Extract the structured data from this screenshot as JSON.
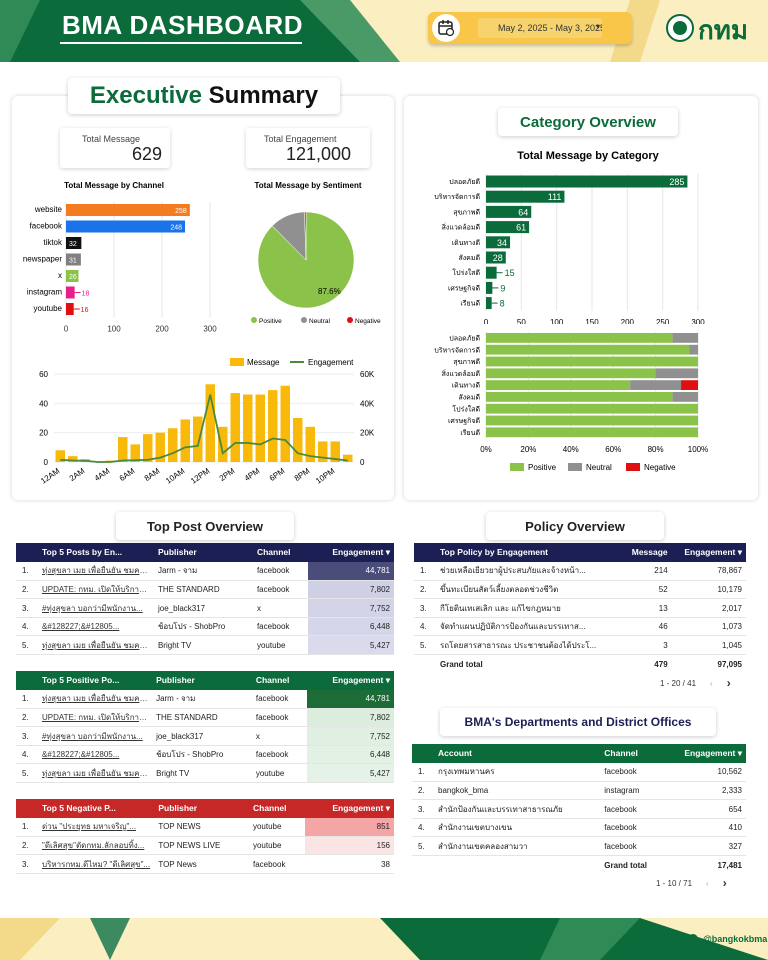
{
  "header": {
    "title": "BMA DASHBOARD",
    "date_range": "May 2, 2025 - May 3, 2025",
    "logo_text": "กทม"
  },
  "summary": {
    "title_a": "Executive",
    "title_b": "Summary",
    "total_message_label": "Total Message",
    "total_message": "629",
    "total_engagement_label": "Total Engagement",
    "total_engagement": "121,000"
  },
  "category_section_title": "Category Overview",
  "colors": {
    "green": "#0b6b3a",
    "orange": "#f47b20",
    "blue": "#1a73e8",
    "light_green": "#8bc34a",
    "grey": "#909090",
    "red": "#e01010",
    "navy": "#1b1f54",
    "darkred": "#c62828",
    "gold": "#f9b90b",
    "line_green": "#4a8a3a"
  },
  "chart_data": [
    {
      "type": "bar",
      "title": "Total Message by Channel",
      "categories": [
        "website",
        "facebook",
        "tiktok",
        "newspaper",
        "x",
        "instagram",
        "youtube"
      ],
      "values": [
        258,
        248,
        32,
        31,
        26,
        18,
        16
      ],
      "colors": [
        "#f47b20",
        "#1a73e8",
        "#111111",
        "#808080",
        "#8bc34a",
        "#e91e8c",
        "#e01010"
      ],
      "xlim": [
        0,
        300
      ],
      "xticks": [
        0,
        100,
        200,
        300
      ]
    },
    {
      "type": "pie",
      "title": "Total Message by Sentiment",
      "labels": [
        "Positive",
        "Neutral",
        "Negative"
      ],
      "values": [
        87.6,
        11.9,
        0.5
      ],
      "colors": [
        "#8bc34a",
        "#909090",
        "#e01010"
      ],
      "center_label": "87.6%"
    },
    {
      "type": "bar",
      "title": "Total Message by Category",
      "categories": [
        "ปลอดภัยดี",
        "บริหารจัดการดี",
        "สุขภาพดี",
        "สิ่งแวดล้อมดี",
        "เดินทางดี",
        "สังคมดี",
        "โปร่งใสดี",
        "เศรษฐกิจดี",
        "เรียนดี"
      ],
      "values": [
        285,
        111,
        64,
        61,
        34,
        28,
        15,
        9,
        8
      ],
      "xlim": [
        0,
        300
      ],
      "xticks": [
        0,
        50,
        100,
        150,
        200,
        250,
        300
      ]
    },
    {
      "type": "bar",
      "title": "",
      "stacked_percent": true,
      "categories": [
        "ปลอดภัยดี",
        "บริหารจัดการดี",
        "สุขภาพดี",
        "สิ่งแวดล้อมดี",
        "เดินทางดี",
        "สังคมดี",
        "โปร่งใสดี",
        "เศรษฐกิจดี",
        "เรียนดี"
      ],
      "series": [
        {
          "name": "Positive",
          "values": [
            88,
            96,
            100,
            80,
            68,
            88,
            100,
            100,
            100
          ]
        },
        {
          "name": "Neutral",
          "values": [
            12,
            4,
            0,
            20,
            24,
            12,
            0,
            0,
            0
          ]
        },
        {
          "name": "Negative",
          "values": [
            0,
            0,
            0,
            0,
            8,
            0,
            0,
            0,
            0
          ]
        }
      ],
      "xticks": [
        "0%",
        "20%",
        "40%",
        "60%",
        "80%",
        "100%"
      ]
    },
    {
      "type": "bar",
      "title": "",
      "categories": [
        "12AM",
        "1AM",
        "2AM",
        "3AM",
        "4AM",
        "5AM",
        "6AM",
        "7AM",
        "8AM",
        "9AM",
        "10AM",
        "11AM",
        "12PM",
        "1PM",
        "2PM",
        "3PM",
        "4PM",
        "5PM",
        "6PM",
        "7PM",
        "8PM",
        "9PM",
        "10PM",
        "11PM"
      ],
      "xticks": [
        "12AM",
        "2AM",
        "4AM",
        "6AM",
        "8AM",
        "10AM",
        "12PM",
        "2PM",
        "4PM",
        "6PM",
        "8PM",
        "10PM"
      ],
      "series": [
        {
          "name": "Message",
          "values": [
            8,
            4,
            2,
            0,
            1,
            17,
            12,
            19,
            20,
            23,
            29,
            31,
            53,
            24,
            47,
            46,
            46,
            49,
            52,
            30,
            24,
            14,
            14,
            5
          ]
        },
        {
          "name": "Engagement",
          "values": [
            1500,
            1000,
            800,
            0,
            0,
            1000,
            1200,
            1500,
            3000,
            6000,
            10000,
            11000,
            46000,
            6000,
            13000,
            13000,
            12000,
            16000,
            15000,
            6000,
            4000,
            3000,
            2000,
            1000
          ]
        }
      ],
      "ylim": [
        0,
        60
      ],
      "yticks": [
        0,
        20,
        40,
        60
      ],
      "y2lim": [
        0,
        60000
      ],
      "y2ticks": [
        "0",
        "20K",
        "40K",
        "60K"
      ]
    }
  ],
  "top_post": {
    "title": "Top Post Overview",
    "posts": {
      "headers": [
        "Top 5 Posts by En...",
        "Publisher",
        "Channel",
        "Engagement ▾"
      ],
      "rows": [
        [
          "1.",
          "ทุ่งสุขลา เมย เพื่อยืนยัน ชมคน...",
          "Jarm - จาม",
          "facebook",
          "44,781"
        ],
        [
          "2.",
          "UPDATE: กทม. เปิดให้บริการ...",
          "THE STANDARD",
          "facebook",
          "7,802"
        ],
        [
          "3.",
          "#ทุ่งสุขลา บอกว่ามีพนักงาน...",
          "joe_black317",
          "x",
          "7,752"
        ],
        [
          "4.",
          "&#128227;&#12805...",
          "ช้อบโปร - ShobPro",
          "facebook",
          "6,448"
        ],
        [
          "5.",
          "ทุ่งสุขลา เมย เพื่อยืนยัน ชมคน...",
          "Bright TV",
          "youtube",
          "5,427"
        ]
      ]
    },
    "positive": {
      "headers": [
        "Top 5 Positive Po...",
        "Publisher",
        "Channel",
        "Engagement ▾"
      ],
      "rows": [
        [
          "1.",
          "ทุ่งสุขลา เมย เพื่อยืนยัน ชมคน...",
          "Jarm - จาม",
          "facebook",
          "44,781"
        ],
        [
          "2.",
          "UPDATE: กทม. เปิดให้บริการ...",
          "THE STANDARD",
          "facebook",
          "7,802"
        ],
        [
          "3.",
          "#ทุ่งสุขลา บอกว่ามีพนักงาน...",
          "joe_black317",
          "x",
          "7,752"
        ],
        [
          "4.",
          "&#128227;&#12805...",
          "ช้อบโปร - ShobPro",
          "facebook",
          "6,448"
        ],
        [
          "5.",
          "ทุ่งสุขลา เมย เพื่อยืนยัน ชมคน...",
          "Bright TV",
          "youtube",
          "5,427"
        ]
      ]
    },
    "negative": {
      "headers": [
        "Top 5 Negative P...",
        "Publisher",
        "Channel",
        "Engagement ▾"
      ],
      "rows": [
        [
          "1.",
          "ด่วน \"ประยุทธ มหาเจริญ\"...",
          "TOP NEWS",
          "youtube",
          "851"
        ],
        [
          "2.",
          "\"ดีเลิศสุข\"ตัดกทม.ลักลอบทิ้ง...",
          "TOP NEWS LIVE",
          "youtube",
          "156"
        ],
        [
          "3.",
          "บริหารกทม.ดีไหม? \"ดีเลิศสุข\"...",
          "TOP News",
          "facebook",
          "38"
        ]
      ]
    }
  },
  "policy": {
    "title": "Policy Overview",
    "headers": [
      "Top Policy by Engagement",
      "Message",
      "Engagement ▾"
    ],
    "rows": [
      [
        "1.",
        "ช่วยเหลือเยียวยาผู้ประสบภัยและจ้างหน้า...",
        "214",
        "78,867"
      ],
      [
        "2.",
        "ขึ้นทะเบียนสัตว์เลี้ยงตลอดช่วงชีวิต",
        "52",
        "10,179"
      ],
      [
        "3.",
        "กีโยตินเทเสเลิก และ แก้ไขกฎหมาย",
        "13",
        "2,017"
      ],
      [
        "4.",
        "จัดทำแผนปฏิบัติการป้องกันและบรรเทาส...",
        "46",
        "1,073"
      ],
      [
        "5.",
        "รถโดยสารสาธารณะ ประชาชนต้องได้ประโ...",
        "3",
        "1,045"
      ]
    ],
    "total_label": "Grand total",
    "total_message": "479",
    "total_engagement": "97,095",
    "pager": "1 - 20 / 41"
  },
  "depts": {
    "title": "BMA's Departments and District Offices",
    "headers": [
      "Account",
      "Channel",
      "Engagement ▾"
    ],
    "rows": [
      [
        "1.",
        "กรุงเทพมหานคร",
        "facebook",
        "10,562"
      ],
      [
        "2.",
        "bangkok_bma",
        "instagram",
        "2,333"
      ],
      [
        "3.",
        "สำนักป้องกันและบรรเทาสาธารณภัย",
        "facebook",
        "654"
      ],
      [
        "4.",
        "สำนักงานเขตบางเขน",
        "facebook",
        "410"
      ],
      [
        "5.",
        "สำนักงานเขตคลองสามวา",
        "facebook",
        "327"
      ]
    ],
    "total_label": "Grand total",
    "total_engagement": "17,481",
    "pager": "1 - 10 / 71"
  },
  "footer": {
    "handle": "@bangkokbma"
  }
}
